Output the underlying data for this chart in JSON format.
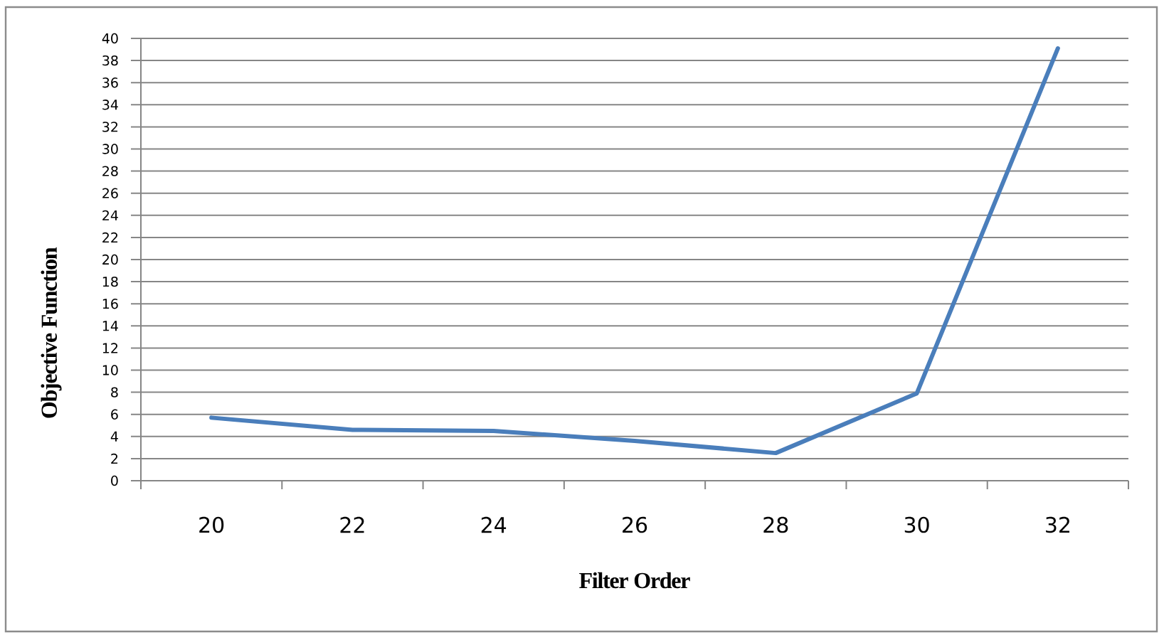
{
  "chart_data": {
    "type": "line",
    "xlabel": "Filter Order",
    "ylabel": "Objective Function",
    "categories": [
      "20",
      "22",
      "24",
      "26",
      "28",
      "30",
      "32"
    ],
    "series": [
      {
        "color": "#4a7ebb",
        "values": [
          5.7,
          4.6,
          4.5,
          3.6,
          2.5,
          7.9,
          39.1
        ]
      }
    ],
    "ylim": [
      0,
      40
    ],
    "yticks": [
      0,
      2,
      4,
      6,
      8,
      10,
      12,
      14,
      16,
      18,
      20,
      22,
      24,
      26,
      28,
      30,
      32,
      34,
      36,
      38,
      40
    ],
    "grid": "y",
    "line_style": "solid"
  }
}
